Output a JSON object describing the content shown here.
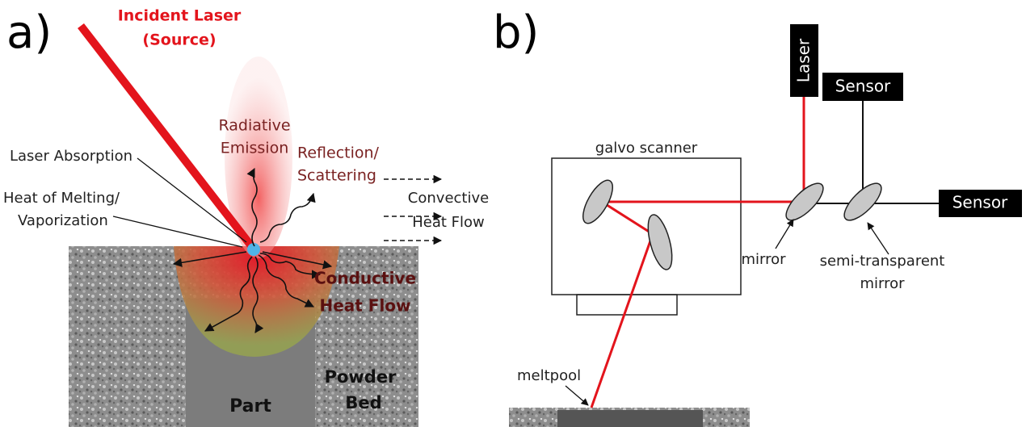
{
  "panel_a": {
    "label": "a)",
    "incident_laser": [
      "Incident Laser",
      "(Source)"
    ],
    "radiative_emission": [
      "Radiative",
      "Emission"
    ],
    "reflection": [
      "Reflection/",
      "Scattering"
    ],
    "laser_absorption": "Laser Absorption",
    "heat_of_melting": [
      "Heat of Melting/",
      "Vaporization"
    ],
    "convective": [
      "Convective",
      "Heat Flow"
    ],
    "conductive": [
      "Conductive",
      "Heat Flow"
    ],
    "part": "Part",
    "powder_bed": [
      "Powder",
      "Bed"
    ]
  },
  "panel_b": {
    "label": "b)",
    "laser": "Laser",
    "sensor_top": "Sensor",
    "sensor_right": "Sensor",
    "galvo_scanner": "galvo scanner",
    "mirror": "mirror",
    "semi_transparent_mirror": [
      "semi-transparent",
      "mirror"
    ],
    "meltpool": "meltpool"
  }
}
